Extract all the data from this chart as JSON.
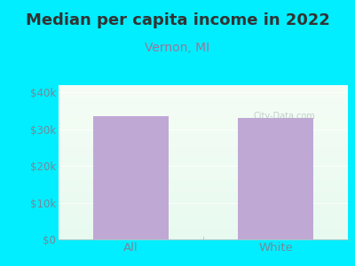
{
  "title": "Median per capita income in 2022",
  "subtitle": "Vernon, MI",
  "categories": [
    "All",
    "White"
  ],
  "values": [
    33500,
    33000
  ],
  "bar_color": "#c0a8d5",
  "title_color": "#333333",
  "subtitle_color": "#997799",
  "tick_color": "#778899",
  "ylabel_ticks": [
    "$0",
    "$10k",
    "$20k",
    "$30k",
    "$40k"
  ],
  "ytick_vals": [
    0,
    10000,
    20000,
    30000,
    40000
  ],
  "ylim": [
    0,
    42000
  ],
  "background_outer": "#00eeff",
  "bg_top_color": "#f5fdf5",
  "bg_bottom_color": "#e8faf0",
  "watermark": "City-Data.com",
  "title_fontsize": 13,
  "subtitle_fontsize": 10,
  "tick_fontsize": 8.5,
  "xlabel_fontsize": 9.5
}
